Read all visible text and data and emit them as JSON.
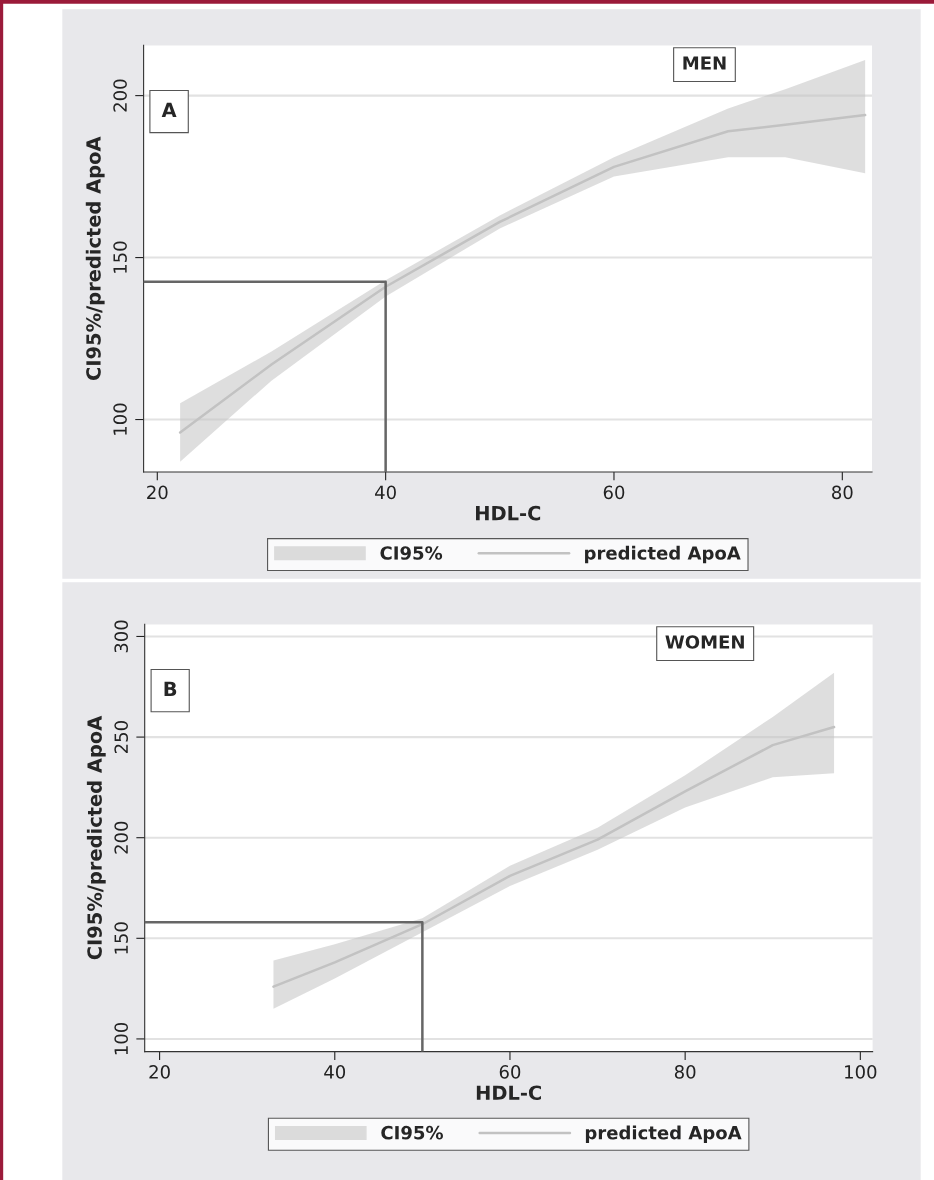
{
  "chart_data": [
    {
      "type": "line",
      "title": "MEN",
      "xlabel": "HDL-C",
      "ylabel": "CI95%/predicted ApoA",
      "annotations": [
        "A"
      ],
      "legend_title": "CI95%",
      "xlim": [
        18.8,
        82.6
      ],
      "ylim": [
        83.8,
        215.5
      ],
      "xticks": [
        20,
        40,
        60,
        80
      ],
      "yticks": [
        100,
        150,
        200
      ],
      "grid": "y",
      "legend": "bottom",
      "series": [
        {
          "type": "line",
          "name": "predicted ApoA",
          "color": "#c2c2c2",
          "x": [
            22,
            30,
            40,
            50,
            60,
            70,
            75,
            82
          ],
          "values": [
            96,
            117,
            141,
            161,
            178,
            189,
            191,
            194
          ],
          "lower": [
            87,
            112,
            138,
            159,
            175,
            181,
            181,
            176
          ],
          "upper": [
            105,
            121,
            143,
            163,
            181,
            196,
            202,
            211
          ]
        },
        {
          "type": "line",
          "color": "#666666",
          "x": [
            18.8,
            40,
            40
          ],
          "values": [
            142.5,
            142.5,
            83.8
          ]
        }
      ]
    },
    {
      "type": "line",
      "title": "WOMEN",
      "xlabel": "HDL-C",
      "ylabel": "CI95%/predicted ApoA",
      "annotations": [
        "B"
      ],
      "legend_title": "CI95%",
      "xlim": [
        18.3,
        101.4
      ],
      "ylim": [
        93.7,
        306
      ],
      "xticks": [
        20,
        40,
        60,
        80,
        100
      ],
      "yticks": [
        100,
        150,
        200,
        250,
        300
      ],
      "grid": "y",
      "legend": "bottom",
      "series": [
        {
          "type": "line",
          "name": "predicted ApoA",
          "color": "#c2c2c2",
          "x": [
            33,
            40,
            50,
            60,
            70,
            80,
            90,
            97
          ],
          "values": [
            126,
            138,
            157,
            181,
            199,
            223,
            246,
            255
          ],
          "lower": [
            115,
            130,
            153,
            176,
            194,
            215,
            230,
            232
          ],
          "upper": [
            139,
            147,
            160,
            186,
            205,
            231,
            260,
            282
          ]
        },
        {
          "type": "line",
          "color": "#666666",
          "x": [
            18.3,
            50,
            50
          ],
          "values": [
            158,
            158,
            93.7
          ]
        }
      ]
    }
  ]
}
